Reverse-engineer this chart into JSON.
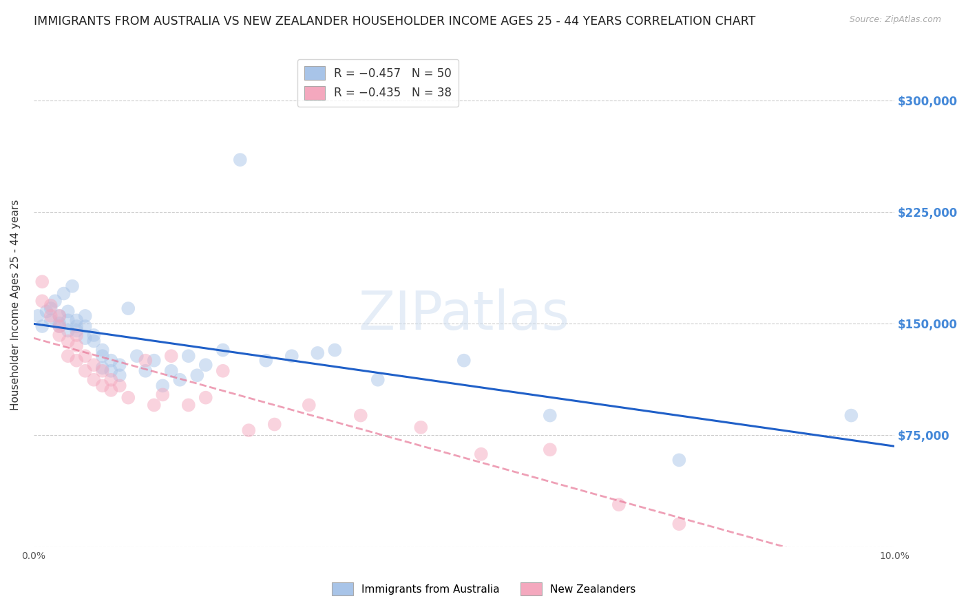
{
  "title": "IMMIGRANTS FROM AUSTRALIA VS NEW ZEALANDER HOUSEHOLDER INCOME AGES 25 - 44 YEARS CORRELATION CHART",
  "source": "Source: ZipAtlas.com",
  "ylabel": "Householder Income Ages 25 - 44 years",
  "xlim": [
    0.0,
    0.1
  ],
  "ylim": [
    0,
    325000
  ],
  "yticks": [
    0,
    75000,
    150000,
    225000,
    300000
  ],
  "ytick_labels": [
    "",
    "$75,000",
    "$150,000",
    "$225,000",
    "$300,000"
  ],
  "xtick_labels": [
    "0.0%",
    "",
    "",
    "",
    "",
    "",
    "",
    "",
    "",
    "",
    "10.0%"
  ],
  "watermark": "ZIPatlas",
  "legend_entries": [
    {
      "label": "R = −0.457   N = 50"
    },
    {
      "label": "R = −0.435   N = 38"
    }
  ],
  "legend_bottom": [
    {
      "label": "Immigrants from Australia"
    },
    {
      "label": "New Zealanders"
    }
  ],
  "australia_x": [
    0.0005,
    0.001,
    0.0015,
    0.002,
    0.002,
    0.0025,
    0.003,
    0.003,
    0.003,
    0.0035,
    0.004,
    0.004,
    0.004,
    0.0045,
    0.005,
    0.005,
    0.005,
    0.006,
    0.006,
    0.006,
    0.007,
    0.007,
    0.008,
    0.008,
    0.008,
    0.009,
    0.009,
    0.01,
    0.01,
    0.011,
    0.012,
    0.013,
    0.014,
    0.015,
    0.016,
    0.017,
    0.018,
    0.019,
    0.02,
    0.022,
    0.024,
    0.027,
    0.03,
    0.033,
    0.035,
    0.04,
    0.05,
    0.06,
    0.075,
    0.095
  ],
  "australia_y": [
    155000,
    148000,
    158000,
    160000,
    152000,
    165000,
    150000,
    155000,
    148000,
    170000,
    152000,
    145000,
    158000,
    175000,
    148000,
    152000,
    145000,
    148000,
    155000,
    140000,
    138000,
    142000,
    128000,
    132000,
    120000,
    125000,
    118000,
    115000,
    122000,
    160000,
    128000,
    118000,
    125000,
    108000,
    118000,
    112000,
    128000,
    115000,
    122000,
    132000,
    260000,
    125000,
    128000,
    130000,
    132000,
    112000,
    125000,
    88000,
    58000,
    88000
  ],
  "nz_x": [
    0.001,
    0.001,
    0.002,
    0.002,
    0.003,
    0.003,
    0.003,
    0.004,
    0.004,
    0.005,
    0.005,
    0.005,
    0.006,
    0.006,
    0.007,
    0.007,
    0.008,
    0.008,
    0.009,
    0.009,
    0.01,
    0.011,
    0.013,
    0.014,
    0.015,
    0.016,
    0.018,
    0.02,
    0.022,
    0.025,
    0.028,
    0.032,
    0.038,
    0.045,
    0.052,
    0.06,
    0.068,
    0.075
  ],
  "nz_y": [
    178000,
    165000,
    162000,
    155000,
    148000,
    142000,
    155000,
    138000,
    128000,
    135000,
    142000,
    125000,
    128000,
    118000,
    122000,
    112000,
    118000,
    108000,
    112000,
    105000,
    108000,
    100000,
    125000,
    95000,
    102000,
    128000,
    95000,
    100000,
    118000,
    78000,
    82000,
    95000,
    88000,
    80000,
    62000,
    65000,
    28000,
    15000
  ],
  "australia_color": "#a8c4e8",
  "nz_color": "#f4a8be",
  "australia_line_color": "#2060c8",
  "nz_line_color": "#e87898",
  "background_color": "#ffffff",
  "grid_color": "#cccccc",
  "title_color": "#222222",
  "right_label_color": "#4488d8",
  "scatter_size": 200,
  "scatter_alpha": 0.5,
  "title_fontsize": 12.5,
  "axis_label_fontsize": 11,
  "tick_fontsize": 10,
  "line_alpha_nz": 0.7
}
